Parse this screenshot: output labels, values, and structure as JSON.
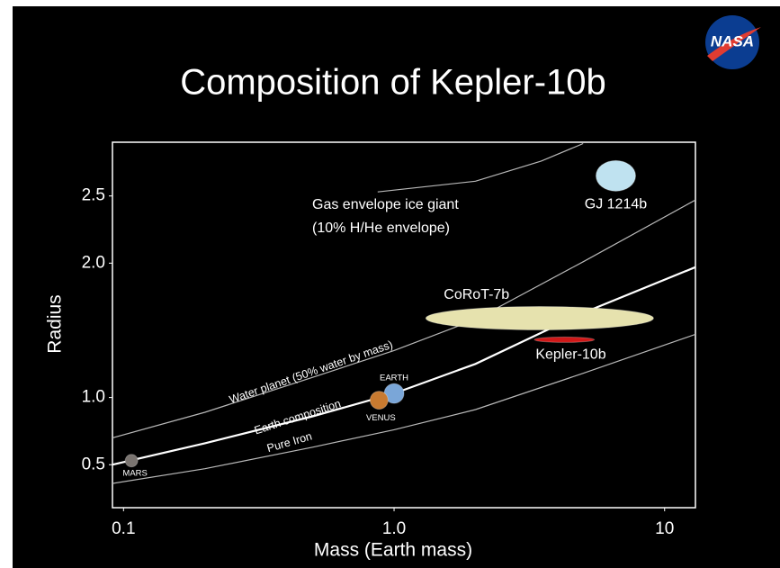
{
  "chart_data": {
    "type": "line",
    "title": "Composition of Kepler-10b",
    "logo_text": "NASA",
    "x_label": "Mass (Earth mass)",
    "y_label": "Radius",
    "x_log": true,
    "xlim": [
      0.091,
      13
    ],
    "ylim": [
      0.18,
      2.9
    ],
    "xticks": [
      0.1,
      {
        "value": 1,
        "label": "1.0"
      },
      10
    ],
    "yticks": [
      0.5,
      {
        "value": 1,
        "label": "1.0"
      },
      {
        "value": 2,
        "label": "2.0"
      },
      2.5
    ],
    "series": [
      {
        "name": "Water planet (50% water by mass)",
        "color": "#b8b8b8",
        "x": [
          0.091,
          0.2,
          0.5,
          1,
          2,
          5,
          13
        ],
        "values": [
          0.7,
          0.89,
          1.15,
          1.35,
          1.58,
          2.01,
          2.47
        ]
      },
      {
        "name": "Earth composition",
        "color": "#ffffff",
        "x": [
          0.091,
          0.2,
          0.5,
          1,
          2,
          5,
          13
        ],
        "values": [
          0.5,
          0.66,
          0.86,
          1.03,
          1.25,
          1.63,
          1.97
        ]
      },
      {
        "name": "Pure Iron",
        "color": "#b8b8b8",
        "x": [
          0.091,
          0.2,
          0.5,
          1,
          2,
          5,
          13
        ],
        "values": [
          0.36,
          0.47,
          0.63,
          0.76,
          0.91,
          1.18,
          1.47
        ]
      },
      {
        "name": "Gas envelope ice giant",
        "name_line2": "(10% H/He envelope)",
        "color": "#b8b8b8",
        "x": [
          0.87,
          2,
          3.5,
          5
        ],
        "values": [
          2.53,
          2.61,
          2.76,
          2.89
        ]
      }
    ],
    "planets": [
      {
        "name": "GJ 1214b",
        "mass": 6.6,
        "radius": 2.65,
        "color": "#bfe2f0"
      },
      {
        "name": "CoRoT-7b",
        "mass": 3.45,
        "radius": 1.59,
        "mass_range": [
          1.31,
          9.1
        ],
        "color": "#e6e2ae"
      },
      {
        "name": "Kepler-10b",
        "mass": 4.5,
        "radius": 1.43,
        "mass_range": [
          3.3,
          5.5
        ],
        "color": "#d01818"
      },
      {
        "name": "EARTH",
        "mass": 1,
        "radius": 1.03,
        "color": "#7aa6d8"
      },
      {
        "name": "VENUS",
        "mass": 0.88,
        "radius": 0.98,
        "color": "#c87a30"
      },
      {
        "name": "MARS",
        "mass": 0.107,
        "radius": 0.53,
        "color": "#7a7470"
      }
    ]
  }
}
